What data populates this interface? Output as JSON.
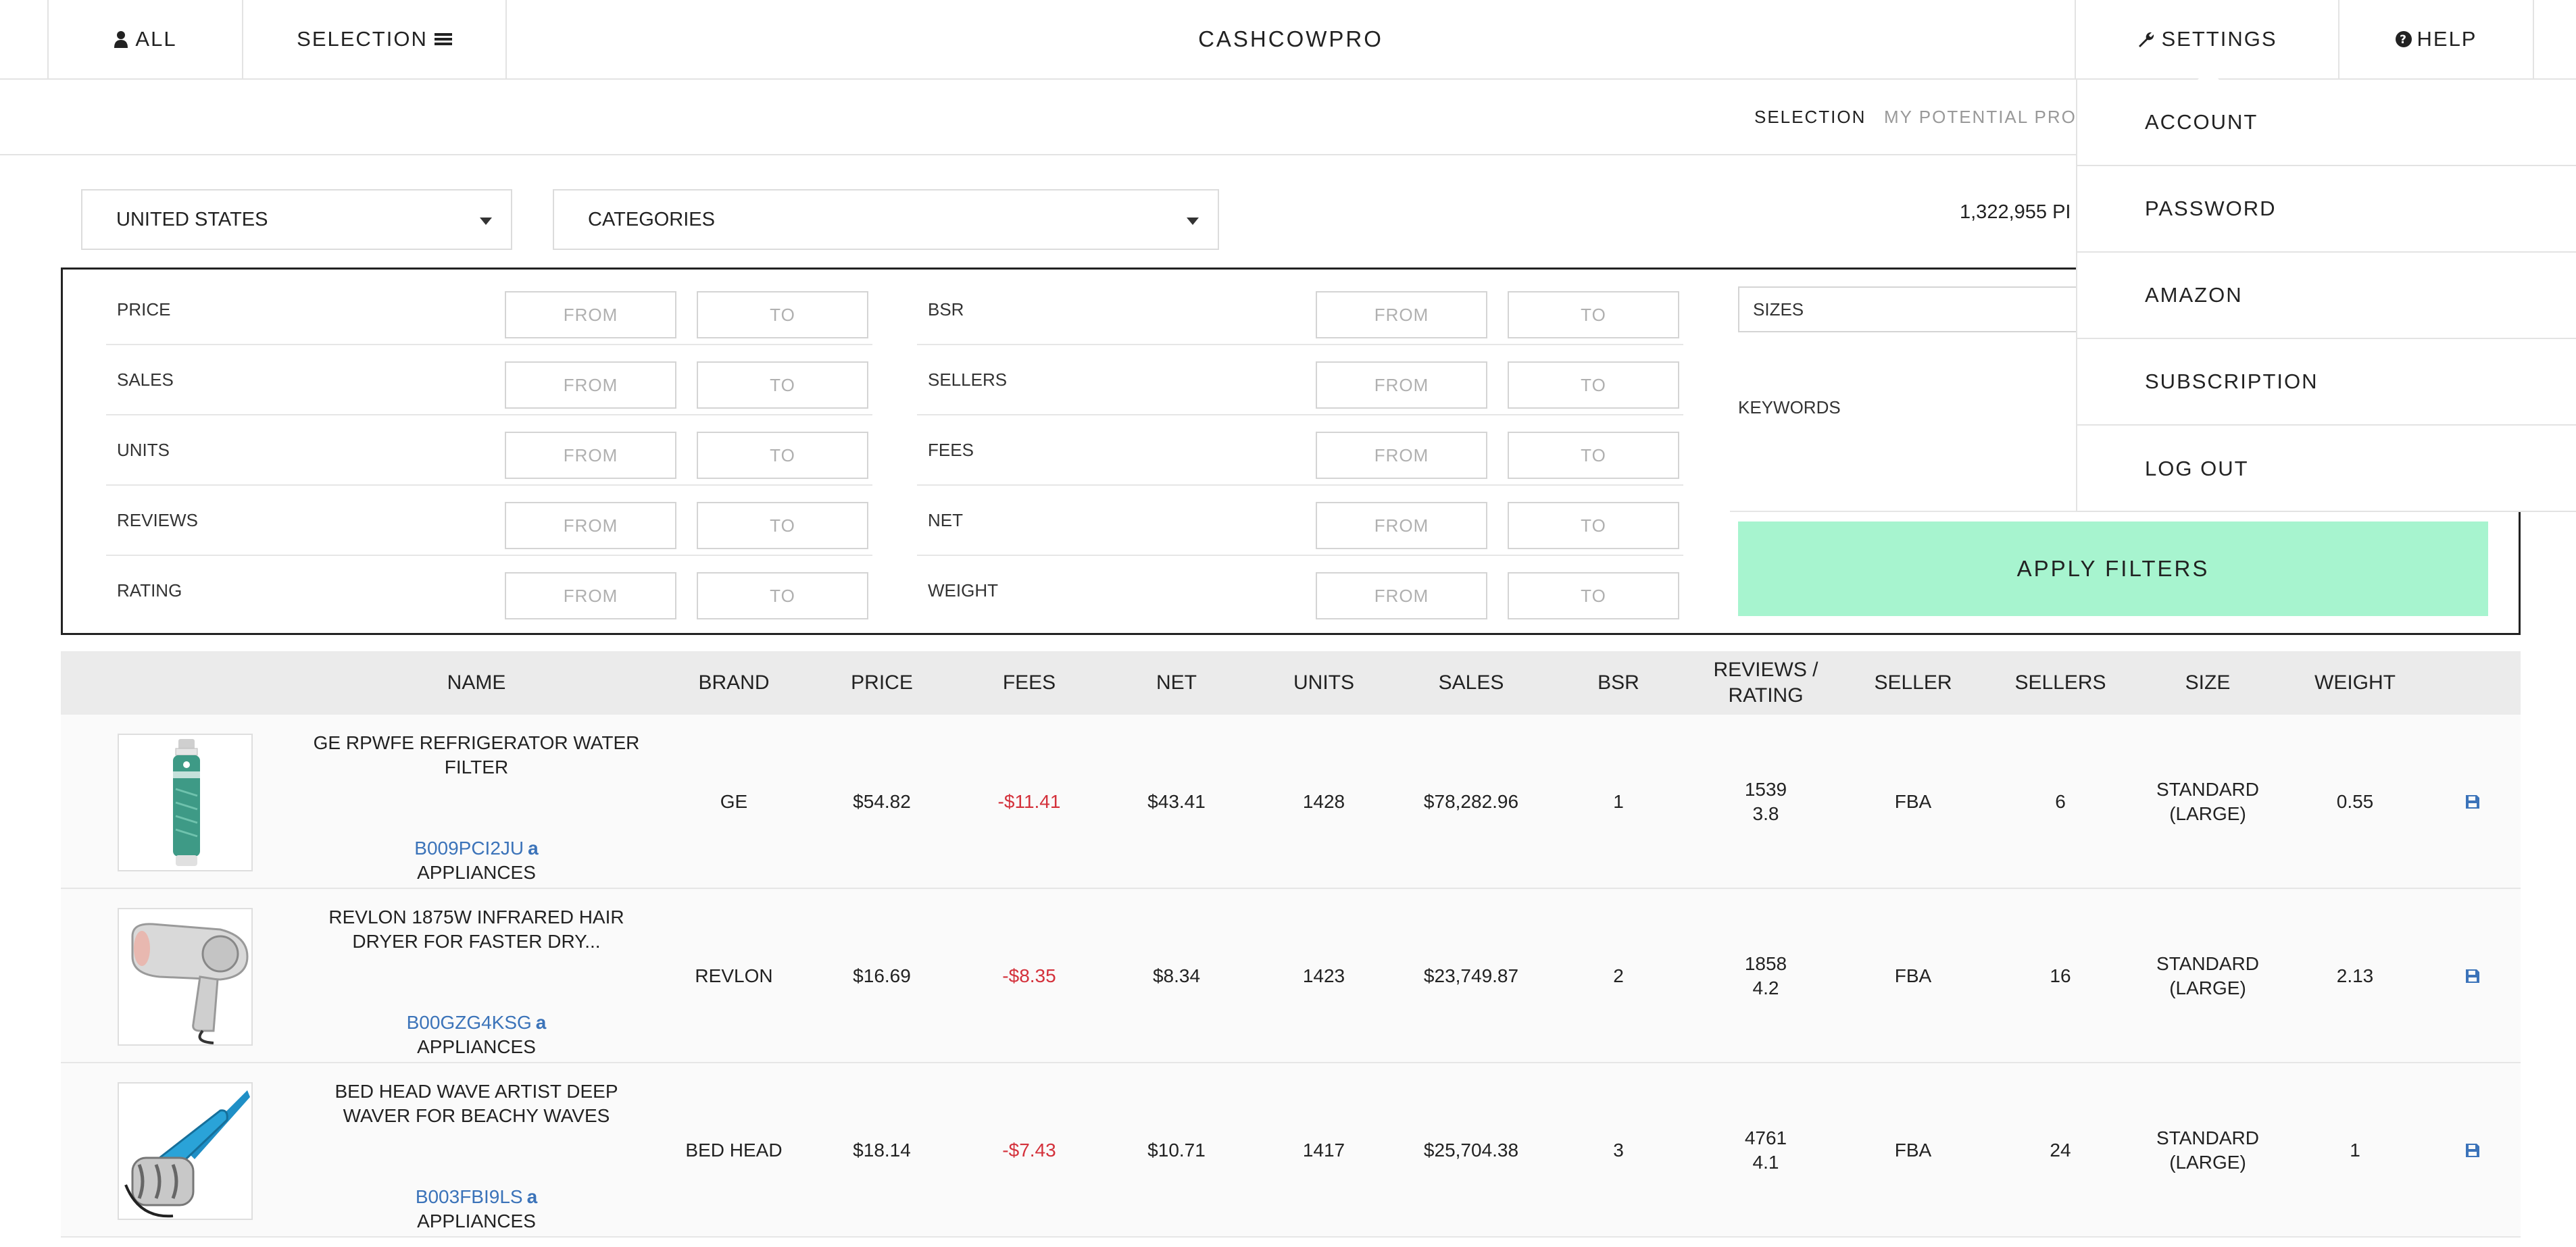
{
  "nav": {
    "all_label": "ALL",
    "selection_label": "SELECTION",
    "brand": "CASHCOWPRO",
    "settings_label": "SETTINGS",
    "help_label": "HELP"
  },
  "subnav": {
    "selection": "SELECTION",
    "my_potential": "MY POTENTIAL PROI"
  },
  "filters_top": {
    "country": "UNITED STATES",
    "categories": "CATEGORIES",
    "result_count": "1,322,955 PI"
  },
  "filters": {
    "from_placeholder": "FROM",
    "to_placeholder": "TO",
    "left": [
      "PRICE",
      "SALES",
      "UNITS",
      "REVIEWS",
      "RATING"
    ],
    "right": [
      "BSR",
      "SELLERS",
      "FEES",
      "NET",
      "WEIGHT"
    ],
    "sizes": "SIZES",
    "keywords": "KEYWORDS",
    "apply": "APPLY FILTERS"
  },
  "table": {
    "headers": [
      "NAME",
      "BRAND",
      "PRICE",
      "FEES",
      "NET",
      "UNITS",
      "SALES",
      "BSR",
      "REVIEWS /\nRATING",
      "SELLER",
      "SELLERS",
      "SIZE",
      "WEIGHT"
    ],
    "rows": [
      {
        "name": "GE RPWFE REFRIGERATOR WATER FILTER",
        "asin": "B009PCI2JU",
        "category": "APPLIANCES",
        "brand": "GE",
        "price": "$54.82",
        "fees": "-$11.41",
        "net": "$43.41",
        "units": "1428",
        "sales": "$78,282.96",
        "bsr": "1",
        "reviews": "1539",
        "rating": "3.8",
        "seller": "FBA",
        "sellers": "6",
        "size": "STANDARD (LARGE)",
        "weight": "0.55"
      },
      {
        "name": "REVLON 1875W INFRARED HAIR DRYER FOR FASTER DRY...",
        "asin": "B00GZG4KSG",
        "category": "APPLIANCES",
        "brand": "REVLON",
        "price": "$16.69",
        "fees": "-$8.35",
        "net": "$8.34",
        "units": "1423",
        "sales": "$23,749.87",
        "bsr": "2",
        "reviews": "1858",
        "rating": "4.2",
        "seller": "FBA",
        "sellers": "16",
        "size": "STANDARD (LARGE)",
        "weight": "2.13"
      },
      {
        "name": "BED HEAD WAVE ARTIST DEEP WAVER FOR BEACHY WAVES",
        "asin": "B003FBI9LS",
        "category": "APPLIANCES",
        "brand": "BED HEAD",
        "price": "$18.14",
        "fees": "-$7.43",
        "net": "$10.71",
        "units": "1417",
        "sales": "$25,704.38",
        "bsr": "3",
        "reviews": "4761",
        "rating": "4.1",
        "seller": "FBA",
        "sellers": "24",
        "size": "STANDARD (LARGE)",
        "weight": "1"
      }
    ]
  },
  "settings_menu": [
    "ACCOUNT",
    "PASSWORD",
    "AMAZON",
    "SUBSCRIPTION",
    "LOG OUT"
  ],
  "colors": {
    "accent_green": "#a7f4cf",
    "link_blue": "#3b73b9",
    "negative_red": "#d4313b"
  }
}
